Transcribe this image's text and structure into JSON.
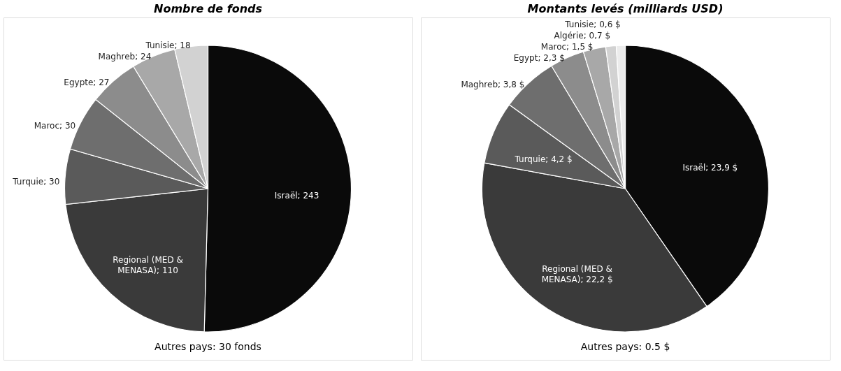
{
  "chart_data": [
    {
      "type": "pie",
      "title": "Nombre de fonds",
      "categories": [
        "Israël",
        "Regional (MED & MENASA)",
        "Turquie",
        "Maroc",
        "Egypte",
        "Maghreb",
        "Tunisie"
      ],
      "values": [
        243,
        110,
        30,
        30,
        27,
        24,
        18
      ],
      "colors": [
        "#0a0a0a",
        "#3a3a3a",
        "#5a5a5a",
        "#6e6e6e",
        "#8c8c8c",
        "#a8a8a8",
        "#d2d2d2"
      ],
      "value_labels": [
        "243",
        "110",
        "30",
        "30",
        "27",
        "24",
        "18"
      ],
      "annotations": [
        "Autres pays: 30 fonds"
      ]
    },
    {
      "type": "pie",
      "title": "Montants levés (milliards USD)",
      "categories": [
        "Israël",
        "Regional (MED & MENASA)",
        "Turquie",
        "Maghreb",
        "Egypt",
        "Maroc",
        "Algérie",
        "Tunisie"
      ],
      "values": [
        23.9,
        22.2,
        4.2,
        3.8,
        2.3,
        1.5,
        0.7,
        0.6
      ],
      "colors": [
        "#0a0a0a",
        "#3a3a3a",
        "#5a5a5a",
        "#6e6e6e",
        "#8c8c8c",
        "#a8a8a8",
        "#d2d2d2",
        "#ececec"
      ],
      "value_labels": [
        "23,9 $",
        "22,2 $",
        "4,2 $",
        "3,8 $",
        "2,3 $",
        "1,5 $",
        "0,7 $",
        "0,6 $"
      ],
      "annotations": [
        "Autres pays: 0.5 $"
      ]
    }
  ]
}
